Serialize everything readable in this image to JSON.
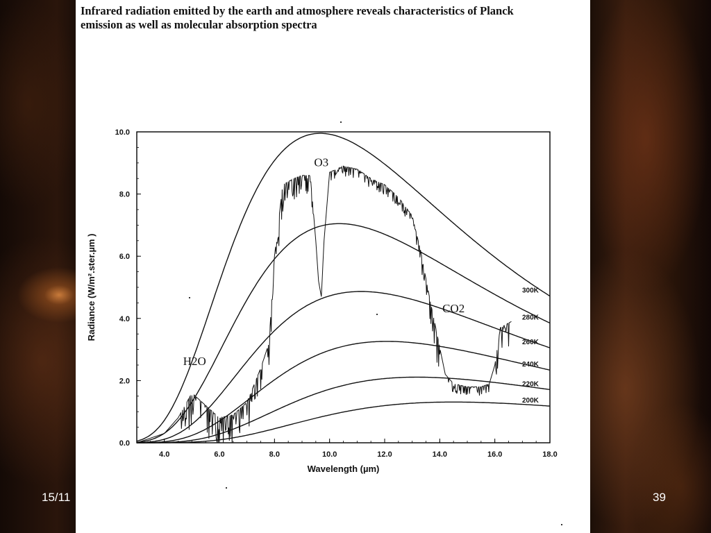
{
  "slide": {
    "title_line1": "Infrared radiation emitted by the earth and atmosphere reveals characteristics of Planck",
    "title_line2": "emission as well as molecular absorption spectra",
    "footer_date": "15/11",
    "page_number": "39"
  },
  "chart_data": {
    "type": "line",
    "xlabel": "Wavelength (µm)",
    "ylabel": "Radiance (W/m².ster.µm )",
    "xlim": [
      3.0,
      18.0
    ],
    "ylim": [
      0.0,
      10.0
    ],
    "x_ticks": [
      "4.0",
      "6.0",
      "8.0",
      "10.0",
      "12.0",
      "14.0",
      "16.0",
      "18.0"
    ],
    "y_ticks": [
      "0.0",
      "2.0",
      "4.0",
      "6.0",
      "8.0",
      "10.0"
    ],
    "series": [
      {
        "name": "300K",
        "temperature_K": 300
      },
      {
        "name": "280K",
        "temperature_K": 280
      },
      {
        "name": "260K",
        "temperature_K": 260
      },
      {
        "name": "240K",
        "temperature_K": 240
      },
      {
        "name": "220K",
        "temperature_K": 220
      },
      {
        "name": "200K",
        "temperature_K": 200
      }
    ],
    "measured_spectrum": {
      "x": [
        3.0,
        4.0,
        4.5,
        5.0,
        5.5,
        6.0,
        6.5,
        7.0,
        7.5,
        7.8,
        8.0,
        8.3,
        8.7,
        9.0,
        9.3,
        9.5,
        9.6,
        9.7,
        9.8,
        10.0,
        10.5,
        11.0,
        11.5,
        12.0,
        12.5,
        13.0,
        13.3,
        13.6,
        13.9,
        14.2,
        14.5,
        15.0,
        15.5,
        15.8,
        16.0,
        16.2,
        16.6
      ],
      "y": [
        0.0,
        0.3,
        0.8,
        1.6,
        1.2,
        0.8,
        0.9,
        1.3,
        2.4,
        3.2,
        6.0,
        8.3,
        8.5,
        8.6,
        8.6,
        6.5,
        5.2,
        4.7,
        6.5,
        8.7,
        8.9,
        8.8,
        8.5,
        8.3,
        7.9,
        7.3,
        6.2,
        4.8,
        3.5,
        2.2,
        1.9,
        1.8,
        1.8,
        1.9,
        2.5,
        3.7,
        3.9
      ]
    },
    "annotations": [
      "O3",
      "CO2",
      "H2O"
    ],
    "grid": false
  }
}
